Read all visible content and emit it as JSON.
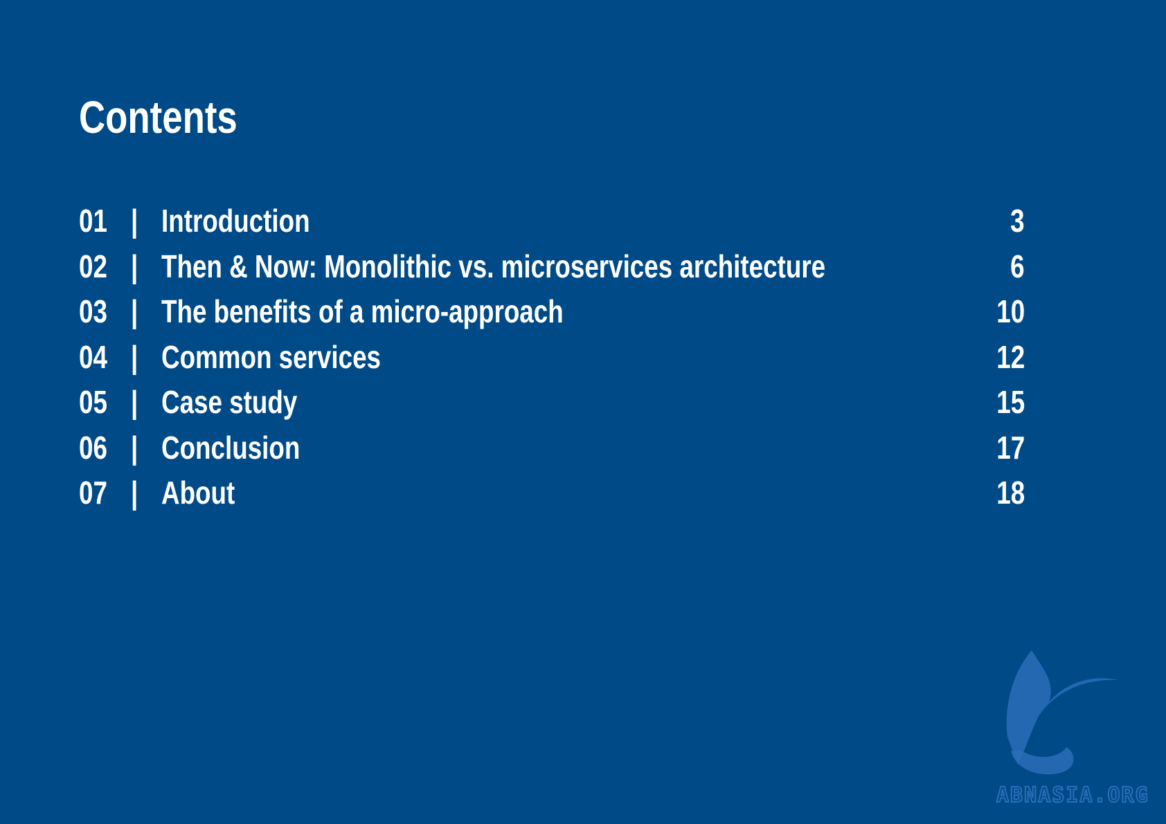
{
  "title": "Contents",
  "separator": "|",
  "items": [
    {
      "number": "01",
      "label": "Introduction",
      "page": 3
    },
    {
      "number": "02",
      "label": "Then & Now: Monolithic vs. microservices architecture",
      "page": 6
    },
    {
      "number": "03",
      "label": "The benefits of a micro-approach",
      "page": 10
    },
    {
      "number": "04",
      "label": "Common services",
      "page": 12
    },
    {
      "number": "05",
      "label": "Case study",
      "page": 15
    },
    {
      "number": "06",
      "label": "Conclusion",
      "page": 17
    },
    {
      "number": "07",
      "label": "About",
      "page": 18
    }
  ],
  "watermark": "ABNASIA.ORG"
}
